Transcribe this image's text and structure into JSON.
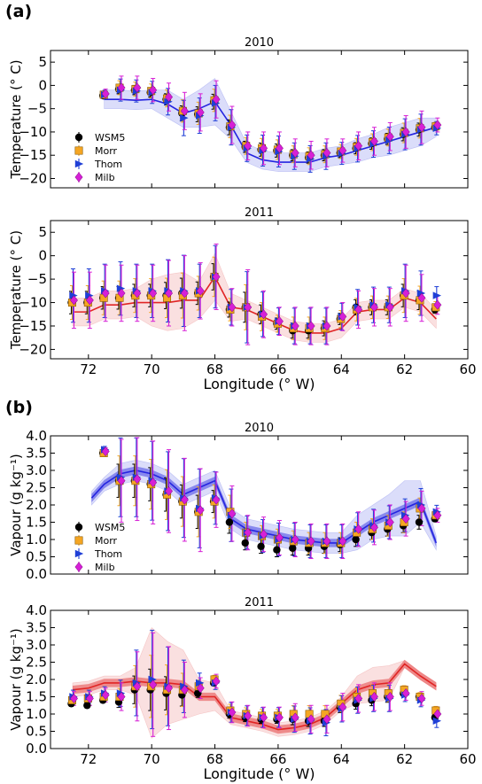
{
  "figure": {
    "panel_labels": [
      "(a)",
      "(b)"
    ],
    "legend_labels": [
      "WSM5",
      "Morr",
      "Thom",
      "Milb"
    ],
    "colors": {
      "wsm5": "#000000",
      "morr": "#f5a623",
      "thom": "#1f3fd6",
      "milb": "#d620d6",
      "obs_2010": "#2424e0",
      "obs_2011": "#e02424",
      "band_2010": "#8f96ee",
      "band_2011": "#f0a0a0"
    }
  },
  "chart_data": [
    {
      "type": "scatter",
      "title": "2010",
      "ylabel": "Temperature (° C)",
      "xlabel": "",
      "ylim": [
        -22,
        7.5
      ],
      "xlim": [
        73.2,
        60
      ],
      "yticks": [
        5,
        0,
        -5,
        -10,
        -15,
        -20
      ],
      "xticks": [],
      "legend": {
        "placement": "left",
        "entries": [
          "WSM5",
          "Morr",
          "Thom",
          "Milb"
        ]
      },
      "x": [
        71.5,
        71.0,
        70.5,
        70.0,
        69.5,
        69.0,
        68.5,
        68.0,
        67.5,
        67.0,
        66.5,
        66.0,
        65.5,
        65.0,
        64.5,
        64.0,
        63.5,
        63.0,
        62.5,
        62.0,
        61.5,
        61.0
      ],
      "line": [
        -3.0,
        -3.0,
        -3.2,
        -3.0,
        -4.0,
        -6.0,
        -5.0,
        -3.5,
        -8.5,
        -14.5,
        -16.0,
        -16.5,
        -16.5,
        -16.5,
        -15.5,
        -15.0,
        -14.0,
        -13.0,
        -12.0,
        -11.0,
        -10.0,
        -9.0
      ],
      "band": [
        2,
        2,
        2,
        2,
        3,
        3,
        4,
        5,
        3,
        2,
        2,
        2,
        2,
        2,
        2,
        2,
        2.5,
        2.5,
        3,
        3,
        3,
        2
      ],
      "series": [
        {
          "name": "WSM5",
          "values": [
            -2.2,
            -0.8,
            -1.0,
            -1.5,
            -3.0,
            -6.0,
            -6.2,
            -3.5,
            -9.0,
            -13.2,
            -13.8,
            -14.0,
            -15.0,
            -15.5,
            -15.0,
            -14.5,
            -13.5,
            -12.5,
            -11.5,
            -10.5,
            -9.5,
            -9.0
          ]
        },
        {
          "name": "Morr",
          "values": [
            -2.0,
            -0.5,
            -0.8,
            -1.2,
            -2.8,
            -5.5,
            -6.0,
            -3.2,
            -8.8,
            -13.0,
            -13.5,
            -13.8,
            -14.8,
            -15.2,
            -14.8,
            -14.2,
            -13.2,
            -12.2,
            -11.2,
            -10.2,
            -9.2,
            -8.8
          ]
        },
        {
          "name": "Thom",
          "values": [
            -2.0,
            -1.0,
            -1.2,
            -1.5,
            -3.5,
            -7.0,
            -6.5,
            -3.8,
            -9.0,
            -13.5,
            -14.0,
            -14.2,
            -15.2,
            -15.8,
            -15.2,
            -14.6,
            -13.6,
            -12.6,
            -11.8,
            -10.5,
            -9.5,
            -9.2
          ]
        },
        {
          "name": "Milb",
          "values": [
            -1.8,
            -0.5,
            -0.5,
            -1.0,
            -2.5,
            -5.5,
            -5.8,
            -3.0,
            -8.5,
            -13.0,
            -13.5,
            -13.5,
            -14.5,
            -15.0,
            -14.5,
            -14.0,
            -13.0,
            -12.0,
            -11.0,
            -10.0,
            -9.0,
            -8.5
          ]
        }
      ],
      "errors": [
        1.0,
        2.5,
        2.5,
        2.5,
        3.0,
        4.0,
        4.0,
        4.0,
        4.0,
        3.0,
        3.5,
        3.5,
        3.0,
        3.0,
        3.0,
        2.5,
        3.0,
        3.0,
        3.0,
        3.5,
        3.5,
        1.5
      ]
    },
    {
      "type": "scatter",
      "title": "2011",
      "ylabel": "Temperature (° C)",
      "xlabel": "Longitude (° W)",
      "ylim": [
        -22,
        7.5
      ],
      "xlim": [
        73.2,
        60
      ],
      "yticks": [
        5,
        0,
        -5,
        -10,
        -15,
        -20
      ],
      "xticks": [
        72,
        70,
        68,
        66,
        64,
        62,
        60
      ],
      "x": [
        72.5,
        72.0,
        71.5,
        71.0,
        70.5,
        70.0,
        69.5,
        69.0,
        68.5,
        68.0,
        67.5,
        67.0,
        66.5,
        66.0,
        65.5,
        65.0,
        64.5,
        64.0,
        63.5,
        63.0,
        62.5,
        62.0,
        61.5,
        61.0
      ],
      "line": [
        -12.0,
        -12.0,
        -10.5,
        -10.5,
        -10.0,
        -10.0,
        -10.0,
        -9.5,
        -9.5,
        -4.5,
        -11.0,
        -11.5,
        -13.0,
        -14.5,
        -16.0,
        -16.5,
        -16.5,
        -15.5,
        -12.0,
        -11.5,
        -11.5,
        -9.0,
        -10.0,
        -13.5
      ],
      "band": [
        3,
        3,
        3,
        3,
        3,
        5,
        6,
        6,
        4,
        5,
        3,
        2,
        2,
        2,
        2,
        2,
        2,
        2,
        2,
        2,
        2,
        2,
        2,
        2
      ],
      "series": [
        {
          "name": "WSM5",
          "values": [
            -10.0,
            -10.0,
            -9.0,
            -9.0,
            -8.5,
            -8.5,
            -8.5,
            -8.0,
            -8.0,
            -4.5,
            -11.5,
            -11.0,
            -12.5,
            -14.5,
            -16.0,
            -16.0,
            -15.5,
            -13.5,
            -11.0,
            -11.0,
            -11.0,
            -8.5,
            -9.5,
            -11.5
          ]
        },
        {
          "name": "Morr",
          "values": [
            -10.0,
            -10.0,
            -9.0,
            -9.0,
            -8.5,
            -8.5,
            -9.0,
            -8.5,
            -8.0,
            -4.5,
            -11.5,
            -11.0,
            -13.0,
            -14.5,
            -15.5,
            -15.5,
            -15.5,
            -13.5,
            -11.5,
            -11.0,
            -11.0,
            -8.5,
            -9.5,
            -11.0
          ]
        },
        {
          "name": "Thom",
          "values": [
            -8.5,
            -8.5,
            -7.5,
            -7.0,
            -7.5,
            -7.5,
            -7.5,
            -7.5,
            -7.5,
            -4.5,
            -11.0,
            -11.0,
            -12.5,
            -14.0,
            -15.0,
            -15.0,
            -15.0,
            -13.0,
            -11.0,
            -10.5,
            -10.5,
            -7.5,
            -8.0,
            -8.5
          ]
        },
        {
          "name": "Milb",
          "values": [
            -9.5,
            -9.5,
            -8.0,
            -8.0,
            -8.0,
            -8.0,
            -8.0,
            -8.0,
            -7.5,
            -4.5,
            -11.0,
            -11.0,
            -12.5,
            -14.0,
            -15.0,
            -15.0,
            -15.0,
            -13.0,
            -11.5,
            -11.0,
            -11.0,
            -8.0,
            -9.0,
            -10.5
          ]
        }
      ],
      "errors": [
        6.0,
        6.0,
        6.0,
        6.0,
        6.0,
        6.0,
        7.0,
        8.0,
        6.0,
        7.0,
        4.0,
        8.0,
        5.0,
        3.0,
        4.0,
        4.0,
        4.0,
        3.0,
        4.0,
        4.0,
        4.0,
        6.0,
        5.0,
        2.0
      ]
    },
    {
      "type": "scatter",
      "title": "2010",
      "ylabel": "Vapour (g kg⁻¹)",
      "xlabel": "",
      "ylim": [
        0,
        4.0
      ],
      "xlim": [
        73.2,
        60
      ],
      "yticks": [
        4.0,
        3.5,
        3.0,
        2.5,
        2.0,
        1.5,
        1.0,
        0.5,
        0.0
      ],
      "xticks": [],
      "legend": {
        "placement": "left",
        "entries": [
          "WSM5",
          "Morr",
          "Thom",
          "Milb"
        ]
      },
      "x": [
        71.5,
        71.0,
        70.5,
        70.0,
        69.5,
        69.0,
        68.5,
        68.0,
        67.5,
        67.0,
        66.5,
        66.0,
        65.5,
        65.0,
        64.5,
        64.0,
        63.5,
        63.0,
        62.5,
        62.0,
        61.5,
        61.0
      ],
      "line_x": [
        71.9,
        71.5,
        71.0,
        70.5,
        70.0,
        69.5,
        69.0,
        68.5,
        68.0,
        67.5,
        67.0,
        66.5,
        66.0,
        65.5,
        65.0,
        64.5,
        64.0,
        63.5,
        63.0,
        62.5,
        62.0,
        61.5,
        61.0
      ],
      "line": [
        2.2,
        2.6,
        2.9,
        3.0,
        2.9,
        2.7,
        2.3,
        2.5,
        2.7,
        1.6,
        1.3,
        1.2,
        1.1,
        1.0,
        0.95,
        0.9,
        0.9,
        1.2,
        1.5,
        1.7,
        1.9,
        2.1,
        0.9
      ],
      "band": [
        0.2,
        0.2,
        0.3,
        0.3,
        0.3,
        0.3,
        0.3,
        0.3,
        0.3,
        0.3,
        0.3,
        0.3,
        0.3,
        0.3,
        0.3,
        0.3,
        0.3,
        0.5,
        0.5,
        0.6,
        0.8,
        0.6,
        0.2
      ],
      "series": [
        {
          "name": "WSM5",
          "values": [
            3.5,
            2.7,
            2.7,
            2.6,
            2.3,
            2.1,
            1.8,
            2.1,
            1.5,
            0.9,
            0.8,
            0.7,
            0.75,
            0.75,
            0.8,
            0.85,
            1.0,
            1.2,
            1.3,
            1.4,
            1.5,
            1.6
          ]
        },
        {
          "name": "Morr",
          "values": [
            3.5,
            2.7,
            2.7,
            2.6,
            2.3,
            2.1,
            1.8,
            2.1,
            1.8,
            1.2,
            1.1,
            1.0,
            0.95,
            0.9,
            0.9,
            0.9,
            1.2,
            1.3,
            1.4,
            1.5,
            1.9,
            1.7
          ]
        },
        {
          "name": "Thom",
          "values": [
            3.6,
            2.8,
            2.8,
            2.7,
            2.4,
            2.2,
            1.9,
            2.2,
            1.7,
            1.2,
            1.1,
            1.0,
            1.0,
            0.95,
            0.95,
            0.95,
            1.3,
            1.4,
            1.5,
            1.7,
            2.0,
            1.8
          ]
        },
        {
          "name": "Milb",
          "values": [
            3.55,
            2.7,
            2.75,
            2.65,
            2.4,
            2.15,
            1.85,
            2.15,
            1.75,
            1.2,
            1.15,
            1.05,
            1.0,
            0.95,
            0.95,
            0.95,
            1.3,
            1.35,
            1.5,
            1.6,
            1.9,
            1.7
          ]
        }
      ],
      "errors": [
        0.1,
        1.2,
        1.2,
        1.2,
        1.2,
        1.2,
        1.2,
        0.8,
        0.8,
        0.5,
        0.5,
        0.5,
        0.5,
        0.5,
        0.5,
        0.5,
        0.5,
        0.5,
        0.5,
        0.5,
        0.5,
        0.2
      ]
    },
    {
      "type": "scatter",
      "title": "2011",
      "ylabel": "Vapour (g kg⁻¹)",
      "xlabel": "Longitude (° W)",
      "ylim": [
        0,
        4.0
      ],
      "xlim": [
        73.2,
        60
      ],
      "yticks": [
        4.0,
        3.5,
        3.0,
        2.5,
        2.0,
        1.5,
        1.0,
        0.5,
        0.0
      ],
      "xticks": [
        72,
        70,
        68,
        66,
        64,
        62,
        60
      ],
      "x": [
        72.5,
        72.0,
        71.5,
        71.0,
        70.5,
        70.0,
        69.5,
        69.0,
        68.5,
        68.0,
        67.5,
        67.0,
        66.5,
        66.0,
        65.5,
        65.0,
        64.5,
        64.0,
        63.5,
        63.0,
        62.5,
        62.0,
        61.5,
        61.0
      ],
      "line_x": [
        72.5,
        72.0,
        71.5,
        71.0,
        70.5,
        70.0,
        69.5,
        69.0,
        68.5,
        68.0,
        67.5,
        67.0,
        66.5,
        66.0,
        65.5,
        65.0,
        64.5,
        64.0,
        63.5,
        63.0,
        62.5,
        62.0,
        61.5,
        61.0
      ],
      "line": [
        1.7,
        1.75,
        1.9,
        1.9,
        1.95,
        1.9,
        1.9,
        1.85,
        1.5,
        1.5,
        0.9,
        0.8,
        0.7,
        0.55,
        0.6,
        0.7,
        0.9,
        1.3,
        1.7,
        1.85,
        1.9,
        2.45,
        2.1,
        1.8
      ],
      "band": [
        0.2,
        0.2,
        0.2,
        0.2,
        0.4,
        1.6,
        1.2,
        1.0,
        0.5,
        0.4,
        0.2,
        0.2,
        0.2,
        0.2,
        0.2,
        0.2,
        0.2,
        0.2,
        0.4,
        0.5,
        0.5,
        0.1,
        0.1,
        0.1
      ],
      "series": [
        {
          "name": "WSM5",
          "values": [
            1.3,
            1.25,
            1.4,
            1.35,
            1.7,
            1.7,
            1.6,
            1.55,
            1.6,
            1.9,
            1.0,
            0.9,
            0.85,
            0.85,
            0.85,
            0.8,
            0.8,
            1.2,
            1.3,
            1.4,
            1.5,
            1.6,
            1.5,
            0.9
          ]
        },
        {
          "name": "Morr",
          "values": [
            1.4,
            1.45,
            1.5,
            1.5,
            1.8,
            1.8,
            1.7,
            1.7,
            1.8,
            2.0,
            1.1,
            1.0,
            0.95,
            0.95,
            1.0,
            1.0,
            1.0,
            1.3,
            1.5,
            1.6,
            1.6,
            1.7,
            1.5,
            1.1
          ]
        },
        {
          "name": "Thom",
          "values": [
            1.5,
            1.5,
            1.6,
            1.6,
            1.9,
            2.0,
            1.8,
            1.8,
            1.9,
            1.9,
            1.05,
            0.95,
            0.9,
            0.9,
            0.85,
            0.8,
            0.75,
            1.15,
            1.4,
            1.45,
            1.45,
            1.55,
            1.4,
            0.8
          ]
        },
        {
          "name": "Milb",
          "values": [
            1.45,
            1.45,
            1.55,
            1.5,
            1.8,
            1.85,
            1.75,
            1.7,
            1.75,
            1.95,
            1.05,
            0.95,
            0.9,
            0.9,
            0.9,
            0.85,
            0.85,
            1.2,
            1.45,
            1.5,
            1.5,
            1.6,
            1.45,
            1.0
          ]
        }
      ],
      "errors": [
        0.2,
        0.2,
        0.2,
        0.4,
        1.0,
        1.5,
        1.2,
        0.8,
        0.3,
        0.2,
        0.3,
        0.3,
        0.3,
        0.3,
        0.4,
        0.4,
        0.4,
        0.4,
        0.4,
        0.4,
        0.4,
        0.2,
        0.2,
        0.2
      ]
    }
  ]
}
